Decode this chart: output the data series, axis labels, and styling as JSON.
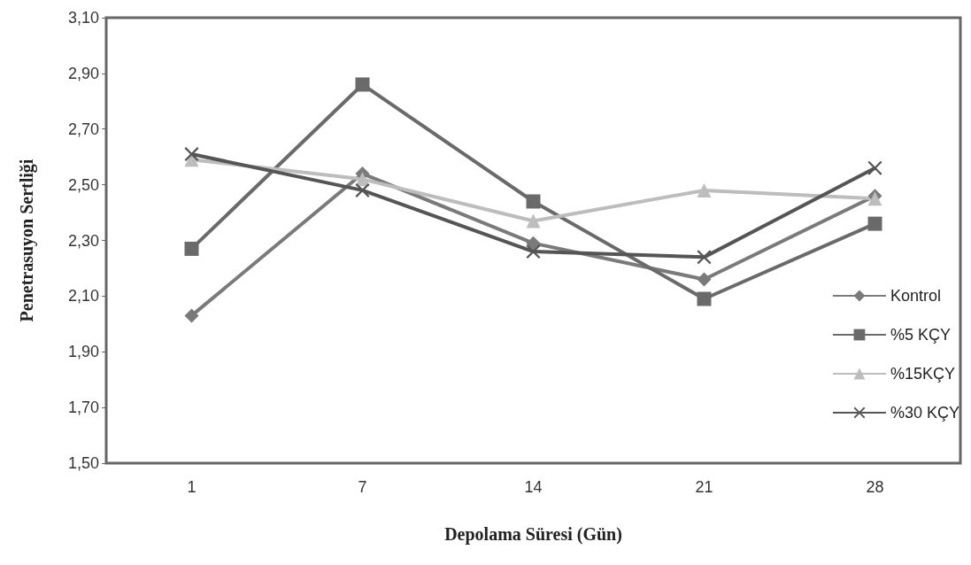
{
  "chart_data": {
    "type": "line",
    "xlabel": "Depolama Süresi (Gün)",
    "ylabel": "Penetrasuyon Sertliği",
    "categories": [
      "1",
      "7",
      "14",
      "21",
      "28"
    ],
    "ylim": [
      1.5,
      3.1
    ],
    "yticks": [
      {
        "value": 1.5,
        "label": "1,50"
      },
      {
        "value": 1.7,
        "label": "1,70"
      },
      {
        "value": 1.9,
        "label": "1,90"
      },
      {
        "value": 2.1,
        "label": "2,10"
      },
      {
        "value": 2.3,
        "label": "2,30"
      },
      {
        "value": 2.5,
        "label": "2,50"
      },
      {
        "value": 2.7,
        "label": "2,70"
      },
      {
        "value": 2.9,
        "label": "2,90"
      },
      {
        "value": 3.1,
        "label": "3,10"
      }
    ],
    "grid": false,
    "legend": "right",
    "series": [
      {
        "name": "Kontrol",
        "color": "#7a7a7a",
        "marker": "diamond",
        "values": [
          2.03,
          2.54,
          2.29,
          2.16,
          2.46
        ]
      },
      {
        "name": "%5 KÇY",
        "color": "#6a6a6a",
        "marker": "square",
        "values": [
          2.27,
          2.86,
          2.44,
          2.09,
          2.36
        ]
      },
      {
        "name": "%15KÇY",
        "color": "#bdbdbd",
        "marker": "triangle",
        "values": [
          2.59,
          2.52,
          2.37,
          2.48,
          2.45
        ]
      },
      {
        "name": "%30 KÇY",
        "color": "#555555",
        "marker": "cross",
        "values": [
          2.61,
          2.48,
          2.26,
          2.24,
          2.56
        ]
      }
    ]
  }
}
